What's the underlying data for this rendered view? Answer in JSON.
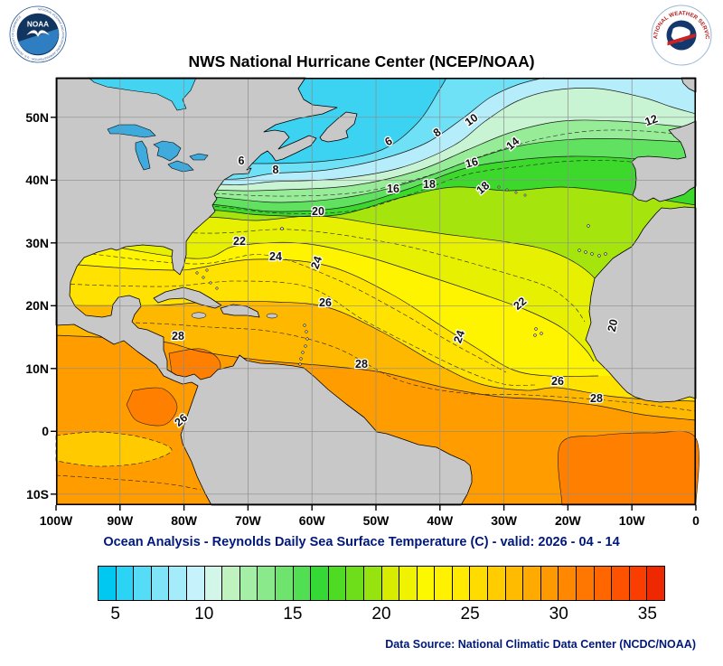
{
  "header": {
    "title": "NWS National Hurricane Center (NCEP/NOAA)",
    "noaa_logo": {
      "text": "NOAA",
      "ring_text": "NATIONAL OCEANIC AND ATMOSPHERIC ADMINISTRATION · U.S. DEPARTMENT OF COMMERCE"
    },
    "nws_logo": {
      "ring_text": "NATIONAL WEATHER SERVICE"
    }
  },
  "caption": "Ocean Analysis - Reynolds Daily Sea Surface Temperature (C) - valid: 2026 - 04 - 14",
  "footer": "Data Source: National Climatic Data Center (NCDC/NOAA)",
  "colors": {
    "caption_text": "#00187A",
    "footer_text": "#00187A",
    "title_text": "#000000"
  },
  "axes": {
    "x_tick_labels": [
      "100W",
      "90W",
      "80W",
      "70W",
      "60W",
      "50W",
      "40W",
      "30W",
      "20W",
      "10W",
      "0"
    ],
    "y_tick_labels": [
      "50N",
      "40N",
      "30N",
      "20N",
      "10N",
      "0",
      "10S"
    ]
  },
  "chart_data": {
    "type": "heatmap",
    "title": "NWS National Hurricane Center (NCEP/NOAA)",
    "subtitle": "Ocean Analysis - Reynolds Daily Sea Surface Temperature (C) - valid: 2026 - 04 - 14",
    "variable": "Reynolds Daily Sea Surface Temperature",
    "units": "C",
    "valid_date": "2026 - 04 - 14",
    "region": "North Atlantic / Eastern Pacific, 100W-0, ~12S-56N",
    "contour_interval_c": 2,
    "labeled_isotherms_c": [
      6,
      8,
      10,
      12,
      14,
      16,
      18,
      20,
      22,
      24,
      26,
      28
    ],
    "base_color": "#3CD2F2",
    "land_color": "#C8C8C8",
    "lake_color": "#3FAADC",
    "hudson_bay_color": "#44D4F2",
    "grid_color": "#8C8C8C",
    "colorbar": {
      "min_c": 4,
      "max_c": 36,
      "tick_values": [
        5,
        10,
        15,
        20,
        25,
        30,
        35
      ],
      "cell_colors": [
        "#00C8F0",
        "#2BD3F4",
        "#55DCF6",
        "#7FE4F8",
        "#A5ECFA",
        "#C6F2FB",
        "#D2F6E8",
        "#C0F2C0",
        "#A5EEA5",
        "#8AE98A",
        "#6EE46E",
        "#52DE52",
        "#35D835",
        "#4FDA24",
        "#6FDE1A",
        "#96E310",
        "#D8EC00",
        "#EFF200",
        "#FCF800",
        "#FFF200",
        "#FFEA00",
        "#FFDC00",
        "#FFCC00",
        "#FFBB00",
        "#FFAA00",
        "#FF9900",
        "#FF8800",
        "#FF7700",
        "#FF6600",
        "#FF5200",
        "#FA3D00",
        "#EE2800"
      ]
    },
    "sst_bands": [
      {
        "iso_c": 6,
        "color": "#6FE1F7",
        "pts": [
          [
            0,
            80
          ],
          [
            150,
            92
          ],
          [
            220,
            95
          ],
          [
            300,
            92
          ],
          [
            360,
            80
          ],
          [
            400,
            50
          ],
          [
            425,
            12
          ],
          [
            432,
            0
          ]
        ]
      },
      {
        "iso_c": 8,
        "color": "#B5EEFA",
        "pts": [
          [
            0,
            95
          ],
          [
            176,
            112
          ],
          [
            240,
            106
          ],
          [
            300,
            102
          ],
          [
            360,
            90
          ],
          [
            410,
            72
          ],
          [
            450,
            45
          ],
          [
            480,
            22
          ],
          [
            510,
            8
          ],
          [
            540,
            0
          ]
        ]
      },
      {
        "iso_c": 10,
        "color": "#C9F4D4",
        "pts": [
          [
            0,
            105
          ],
          [
            180,
            118
          ],
          [
            240,
            115
          ],
          [
            310,
            112
          ],
          [
            380,
            100
          ],
          [
            440,
            75
          ],
          [
            475,
            48
          ],
          [
            510,
            26
          ],
          [
            550,
            14
          ],
          [
            600,
            12
          ],
          [
            650,
            22
          ],
          [
            680,
            32
          ],
          [
            708,
            40
          ]
        ]
      },
      {
        "iso_c": 12,
        "color": "#97EC97",
        "pts": [
          [
            0,
            112
          ],
          [
            174,
            124
          ],
          [
            250,
            124
          ],
          [
            330,
            119
          ],
          [
            400,
            103
          ],
          [
            455,
            80
          ],
          [
            505,
            60
          ],
          [
            560,
            48
          ],
          [
            620,
            48
          ],
          [
            670,
            52
          ],
          [
            708,
            56
          ]
        ]
      },
      {
        "iso_c": 14,
        "color": "#60E160",
        "pts": [
          [
            0,
            120
          ],
          [
            172,
            132
          ],
          [
            250,
            138
          ],
          [
            330,
            131
          ],
          [
            400,
            113
          ],
          [
            460,
            91
          ],
          [
            515,
            75
          ],
          [
            575,
            68
          ],
          [
            635,
            68
          ],
          [
            708,
            72
          ]
        ]
      },
      {
        "iso_c": 16,
        "color": "#3CD82C",
        "pts": [
          [
            0,
            128
          ],
          [
            170,
            140
          ],
          [
            240,
            148
          ],
          [
            320,
            143
          ],
          [
            390,
            123
          ],
          [
            450,
            101
          ],
          [
            510,
            91
          ],
          [
            570,
            87
          ],
          [
            630,
            89
          ],
          [
            670,
            93
          ],
          [
            708,
            98
          ]
        ]
      },
      {
        "iso_c": 18,
        "color": "#A5E50D",
        "pts": [
          [
            0,
            136
          ],
          [
            168,
            146
          ],
          [
            230,
            152
          ],
          [
            310,
            152
          ],
          [
            380,
            133
          ],
          [
            440,
            121
          ],
          [
            500,
            125
          ],
          [
            560,
            121
          ],
          [
            620,
            127
          ],
          [
            670,
            135
          ],
          [
            708,
            141
          ]
        ]
      },
      {
        "iso_c": 20,
        "color": "#E6F000",
        "pts": [
          [
            0,
            150
          ],
          [
            166,
            154
          ],
          [
            220,
            158
          ],
          [
            290,
            153
          ],
          [
            360,
            163
          ],
          [
            430,
            173
          ],
          [
            500,
            182
          ],
          [
            550,
            193
          ],
          [
            590,
            216
          ],
          [
            615,
            250
          ],
          [
            628,
            285
          ],
          [
            620,
            300
          ],
          [
            600,
            303
          ]
        ]
      },
      {
        "iso_c": 22,
        "color": "#FEF400",
        "pts": [
          [
            0,
            175
          ],
          [
            150,
            200
          ],
          [
            200,
            186
          ],
          [
            270,
            183
          ],
          [
            340,
            197
          ],
          [
            410,
            219
          ],
          [
            470,
            239
          ],
          [
            520,
            257
          ],
          [
            560,
            277
          ],
          [
            585,
            300
          ],
          [
            595,
            314
          ]
        ]
      },
      {
        "iso_c": 24,
        "color": "#FFE200",
        "pts": [
          [
            0,
            205
          ],
          [
            80,
            211
          ],
          [
            135,
            213
          ],
          [
            155,
            211
          ],
          [
            220,
            201
          ],
          [
            300,
            208
          ],
          [
            370,
            239
          ],
          [
            430,
            277
          ],
          [
            465,
            299
          ],
          [
            505,
            323
          ],
          [
            545,
            330
          ],
          [
            600,
            330
          ]
        ]
      },
      {
        "iso_c": 26,
        "color": "#FFB800",
        "pts": [
          [
            0,
            252
          ],
          [
            110,
            252
          ],
          [
            170,
            248
          ],
          [
            240,
            248
          ],
          [
            300,
            254
          ],
          [
            360,
            281
          ],
          [
            420,
            316
          ],
          [
            470,
            339
          ],
          [
            520,
            346
          ],
          [
            555,
            343
          ],
          [
            610,
            352
          ],
          [
            655,
            356
          ],
          [
            708,
            358
          ]
        ]
      },
      {
        "iso_c": 28,
        "color": "#FF9D00",
        "pts": [
          [
            0,
            285
          ],
          [
            110,
            291
          ],
          [
            160,
            303
          ],
          [
            230,
            313
          ],
          [
            300,
            319
          ],
          [
            360,
            326
          ],
          [
            430,
            343
          ],
          [
            490,
            353
          ],
          [
            540,
            356
          ],
          [
            600,
            363
          ],
          [
            650,
            373
          ],
          [
            708,
            379
          ]
        ]
      }
    ],
    "warm_patches": [
      {
        "color": "#FF8000",
        "pts": [
          [
            125,
            305
          ],
          [
            160,
            300
          ],
          [
            180,
            312
          ],
          [
            178,
            328
          ],
          [
            150,
            336
          ],
          [
            128,
            326
          ]
        ]
      },
      {
        "color": "#FF8000",
        "pts": [
          [
            85,
            346
          ],
          [
            118,
            344
          ],
          [
            134,
            364
          ],
          [
            120,
            384
          ],
          [
            90,
            380
          ],
          [
            78,
            362
          ]
        ]
      },
      {
        "color": "#FF8000",
        "pts": [
          [
            560,
            473
          ],
          [
            558,
            406
          ],
          [
            600,
            396
          ],
          [
            660,
            393
          ],
          [
            708,
            399
          ],
          [
            708,
            473
          ]
        ]
      }
    ],
    "cool_patches": [
      {
        "color": "#FFCA00",
        "pts": [
          [
            0,
            396
          ],
          [
            45,
            392
          ],
          [
            95,
            398
          ],
          [
            128,
            412
          ],
          [
            95,
            426
          ],
          [
            45,
            430
          ],
          [
            0,
            424
          ]
        ]
      }
    ],
    "dashed_isotherms": [
      [
        [
          0,
          116
        ],
        [
          174,
          128
        ],
        [
          260,
          131
        ],
        [
          340,
          126
        ],
        [
          410,
          109
        ],
        [
          470,
          87
        ],
        [
          530,
          69
        ],
        [
          590,
          59
        ],
        [
          650,
          59
        ],
        [
          708,
          65
        ]
      ],
      [
        [
          0,
          132
        ],
        [
          170,
          142
        ],
        [
          250,
          150
        ],
        [
          330,
          147
        ],
        [
          395,
          128
        ],
        [
          455,
          107
        ],
        [
          515,
          98
        ],
        [
          575,
          92
        ],
        [
          635,
          93
        ],
        [
          708,
          104
        ]
      ],
      [
        [
          0,
          162
        ],
        [
          160,
          172
        ],
        [
          260,
          168
        ],
        [
          360,
          181
        ],
        [
          430,
          197
        ],
        [
          500,
          217
        ],
        [
          545,
          232
        ],
        [
          572,
          252
        ],
        [
          585,
          270
        ]
      ],
      [
        [
          0,
          190
        ],
        [
          150,
          206
        ],
        [
          230,
          196
        ],
        [
          310,
          223
        ],
        [
          380,
          259
        ],
        [
          430,
          289
        ],
        [
          470,
          311
        ],
        [
          498,
          326
        ]
      ],
      [
        [
          0,
          228
        ],
        [
          120,
          231
        ],
        [
          200,
          225
        ],
        [
          280,
          232
        ],
        [
          340,
          268
        ],
        [
          400,
          299
        ],
        [
          450,
          323
        ],
        [
          495,
          339
        ],
        [
          530,
          340
        ]
      ],
      [
        [
          0,
          268
        ],
        [
          110,
          272
        ],
        [
          170,
          276
        ],
        [
          240,
          281
        ],
        [
          310,
          299
        ],
        [
          380,
          335
        ],
        [
          450,
          349
        ],
        [
          520,
          351
        ],
        [
          620,
          358
        ],
        [
          708,
          369
        ]
      ],
      [
        [
          0,
          440
        ],
        [
          60,
          444
        ],
        [
          120,
          449
        ],
        [
          160,
          456
        ]
      ]
    ],
    "contour_labels": [
      [
        6,
        205,
        96,
        0
      ],
      [
        6,
        370,
        74,
        -30
      ],
      [
        8,
        243,
        106,
        0
      ],
      [
        8,
        424,
        64,
        -35
      ],
      [
        10,
        462,
        50,
        -35
      ],
      [
        12,
        660,
        51,
        -20
      ],
      [
        14,
        508,
        76,
        -40
      ],
      [
        16,
        373,
        127,
        0
      ],
      [
        16,
        461,
        98,
        -15
      ],
      [
        18,
        413,
        122,
        0
      ],
      [
        18,
        475,
        125,
        -40
      ],
      [
        20,
        290,
        152,
        0
      ],
      [
        20,
        620,
        275,
        -78
      ],
      [
        22,
        203,
        185,
        0
      ],
      [
        22,
        516,
        253,
        -40
      ],
      [
        24,
        243,
        202,
        0
      ],
      [
        24,
        292,
        206,
        -70
      ],
      [
        24,
        450,
        288,
        -70
      ],
      [
        26,
        298,
        253,
        0
      ],
      [
        26,
        555,
        340,
        0
      ],
      [
        26,
        141,
        382,
        -40
      ],
      [
        28,
        135,
        290,
        0
      ],
      [
        28,
        338,
        321,
        0
      ],
      [
        28,
        598,
        359,
        0
      ]
    ]
  }
}
